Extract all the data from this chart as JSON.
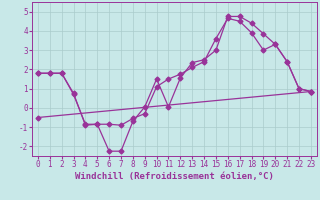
{
  "xlabel": "Windchill (Refroidissement éolien,°C)",
  "background_color": "#c8e8e8",
  "grid_color": "#aacccc",
  "line_color": "#993399",
  "xlim": [
    -0.5,
    23.5
  ],
  "ylim": [
    -2.5,
    5.5
  ],
  "yticks": [
    -2,
    -1,
    0,
    1,
    2,
    3,
    4,
    5
  ],
  "xticks": [
    0,
    1,
    2,
    3,
    4,
    5,
    6,
    7,
    8,
    9,
    10,
    11,
    12,
    13,
    14,
    15,
    16,
    17,
    18,
    19,
    20,
    21,
    22,
    23
  ],
  "line1_x": [
    0,
    1,
    2,
    3,
    4,
    5,
    6,
    7,
    8,
    9,
    10,
    11,
    12,
    13,
    14,
    15,
    16,
    17,
    18,
    19,
    20,
    21,
    22,
    23
  ],
  "line1_y": [
    1.8,
    1.8,
    1.8,
    0.7,
    -0.85,
    -0.85,
    -2.25,
    -2.25,
    -0.7,
    0.05,
    1.5,
    0.05,
    1.55,
    2.35,
    2.5,
    3.0,
    4.75,
    4.75,
    4.4,
    3.85,
    3.3,
    2.4,
    1.0,
    0.85
  ],
  "line2_x": [
    0,
    1,
    2,
    3,
    4,
    5,
    6,
    7,
    8,
    9,
    10,
    11,
    12,
    13,
    14,
    15,
    16,
    17,
    18,
    19,
    20,
    21,
    22,
    23
  ],
  "line2_y": [
    1.8,
    1.8,
    1.8,
    0.75,
    -0.9,
    -0.85,
    -0.85,
    -0.9,
    -0.55,
    -0.3,
    1.1,
    1.5,
    1.75,
    2.1,
    2.4,
    3.6,
    4.65,
    4.5,
    3.9,
    3.0,
    3.3,
    2.4,
    1.0,
    0.85
  ],
  "line3_x": [
    0,
    23
  ],
  "line3_y": [
    -0.5,
    0.85
  ],
  "marker": "D",
  "marker_size": 2.5,
  "line_width": 0.9,
  "tick_fontsize": 5.5,
  "xlabel_fontsize": 6.5
}
